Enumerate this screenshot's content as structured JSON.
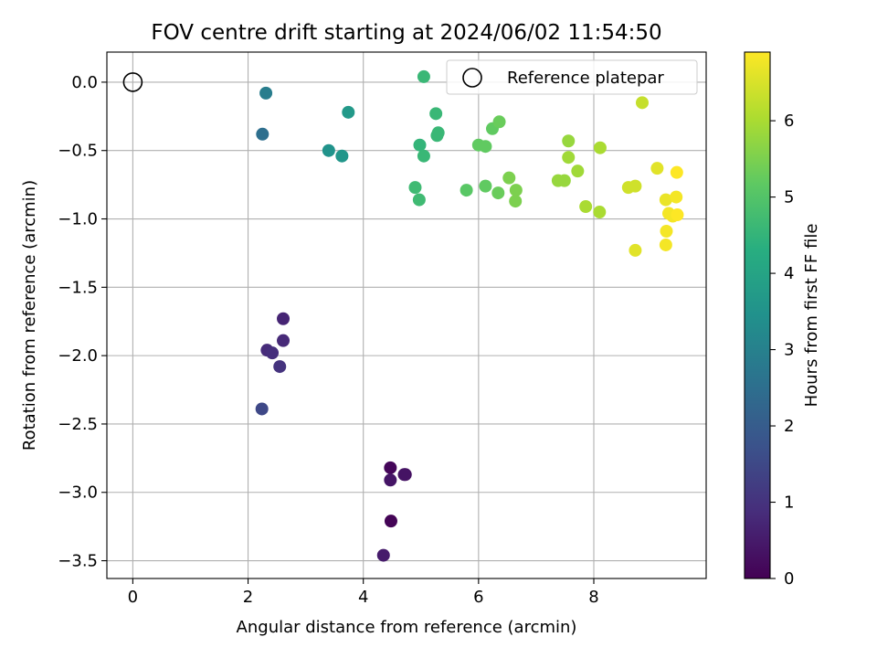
{
  "chart_data": {
    "type": "scatter",
    "title": "FOV centre drift starting at 2024/06/02 11:54:50",
    "xlabel": "Angular distance from reference (arcmin)",
    "ylabel": "Rotation from reference (arcmin)",
    "xlim": [
      -0.45,
      9.95
    ],
    "ylim": [
      -3.63,
      0.22
    ],
    "xticks": [
      0,
      2,
      4,
      6,
      8
    ],
    "xtick_labels": [
      "0",
      "2",
      "4",
      "6",
      "8"
    ],
    "yticks": [
      0.0,
      -0.5,
      -1.0,
      -1.5,
      -2.0,
      -2.5,
      -3.0,
      -3.5
    ],
    "ytick_labels": [
      "0.0",
      "−0.5",
      "−1.0",
      "−1.5",
      "−2.0",
      "−2.5",
      "−3.0",
      "−3.5"
    ],
    "grid": true,
    "legend": {
      "position": "top-right",
      "entries": [
        "Reference platepar"
      ]
    },
    "reference_point": {
      "x": 0,
      "y": 0
    },
    "colorbar": {
      "label": "Hours from first FF file",
      "colormap": "viridis",
      "range": [
        0,
        6.9
      ],
      "ticks": [
        0,
        1,
        2,
        3,
        4,
        5,
        6
      ],
      "tick_labels": [
        "0",
        "1",
        "2",
        "3",
        "4",
        "5",
        "6"
      ]
    },
    "points": [
      {
        "x": 4.48,
        "y": -3.21,
        "c": 0.05
      },
      {
        "x": 4.47,
        "y": -2.82,
        "c": 0.1
      },
      {
        "x": 4.47,
        "y": -2.91,
        "c": 0.4
      },
      {
        "x": 4.73,
        "y": -2.87,
        "c": 0.3
      },
      {
        "x": 4.71,
        "y": -2.87,
        "c": 0.35
      },
      {
        "x": 4.35,
        "y": -3.46,
        "c": 0.5
      },
      {
        "x": 2.61,
        "y": -1.73,
        "c": 0.7
      },
      {
        "x": 2.61,
        "y": -1.89,
        "c": 0.8
      },
      {
        "x": 2.33,
        "y": -1.96,
        "c": 0.85
      },
      {
        "x": 2.42,
        "y": -1.98,
        "c": 0.9
      },
      {
        "x": 2.55,
        "y": -2.08,
        "c": 1.0
      },
      {
        "x": 2.24,
        "y": -2.39,
        "c": 1.5
      },
      {
        "x": 2.25,
        "y": -0.38,
        "c": 2.5
      },
      {
        "x": 2.31,
        "y": -0.08,
        "c": 2.9
      },
      {
        "x": 3.4,
        "y": -0.5,
        "c": 3.5
      },
      {
        "x": 3.63,
        "y": -0.54,
        "c": 3.6
      },
      {
        "x": 3.74,
        "y": -0.22,
        "c": 3.7
      },
      {
        "x": 5.05,
        "y": 0.04,
        "c": 4.6
      },
      {
        "x": 5.26,
        "y": -0.23,
        "c": 4.6
      },
      {
        "x": 5.3,
        "y": -0.37,
        "c": 4.6
      },
      {
        "x": 5.28,
        "y": -0.39,
        "c": 4.6
      },
      {
        "x": 4.98,
        "y": -0.46,
        "c": 4.5
      },
      {
        "x": 5.05,
        "y": -0.54,
        "c": 4.6
      },
      {
        "x": 4.9,
        "y": -0.77,
        "c": 4.7
      },
      {
        "x": 4.97,
        "y": -0.86,
        "c": 4.7
      },
      {
        "x": 5.79,
        "y": -0.79,
        "c": 5.1
      },
      {
        "x": 6.0,
        "y": -0.46,
        "c": 5.2
      },
      {
        "x": 6.12,
        "y": -0.47,
        "c": 5.2
      },
      {
        "x": 6.12,
        "y": -0.76,
        "c": 5.2
      },
      {
        "x": 6.24,
        "y": -0.34,
        "c": 5.2
      },
      {
        "x": 6.36,
        "y": -0.29,
        "c": 5.3
      },
      {
        "x": 6.34,
        "y": -0.81,
        "c": 5.3
      },
      {
        "x": 6.53,
        "y": -0.7,
        "c": 5.5
      },
      {
        "x": 6.65,
        "y": -0.79,
        "c": 5.5
      },
      {
        "x": 6.64,
        "y": -0.87,
        "c": 5.5
      },
      {
        "x": 7.38,
        "y": -0.72,
        "c": 5.8
      },
      {
        "x": 7.49,
        "y": -0.72,
        "c": 5.8
      },
      {
        "x": 7.56,
        "y": -0.43,
        "c": 5.8
      },
      {
        "x": 7.56,
        "y": -0.55,
        "c": 5.9
      },
      {
        "x": 7.72,
        "y": -0.65,
        "c": 5.9
      },
      {
        "x": 7.86,
        "y": -0.91,
        "c": 6.0
      },
      {
        "x": 8.1,
        "y": -0.95,
        "c": 6.0
      },
      {
        "x": 8.11,
        "y": -0.48,
        "c": 6.0
      },
      {
        "x": 8.84,
        "y": -0.15,
        "c": 6.3
      },
      {
        "x": 8.6,
        "y": -0.77,
        "c": 6.4
      },
      {
        "x": 8.72,
        "y": -0.76,
        "c": 6.4
      },
      {
        "x": 8.72,
        "y": -1.23,
        "c": 6.6
      },
      {
        "x": 9.1,
        "y": -0.63,
        "c": 6.6
      },
      {
        "x": 9.25,
        "y": -0.86,
        "c": 6.7
      },
      {
        "x": 9.3,
        "y": -0.96,
        "c": 6.8
      },
      {
        "x": 9.26,
        "y": -1.09,
        "c": 6.8
      },
      {
        "x": 9.25,
        "y": -1.19,
        "c": 6.8
      },
      {
        "x": 9.37,
        "y": -0.98,
        "c": 6.8
      },
      {
        "x": 9.43,
        "y": -0.84,
        "c": 6.8
      },
      {
        "x": 9.45,
        "y": -0.97,
        "c": 6.9
      },
      {
        "x": 9.44,
        "y": -0.66,
        "c": 6.9
      }
    ]
  }
}
